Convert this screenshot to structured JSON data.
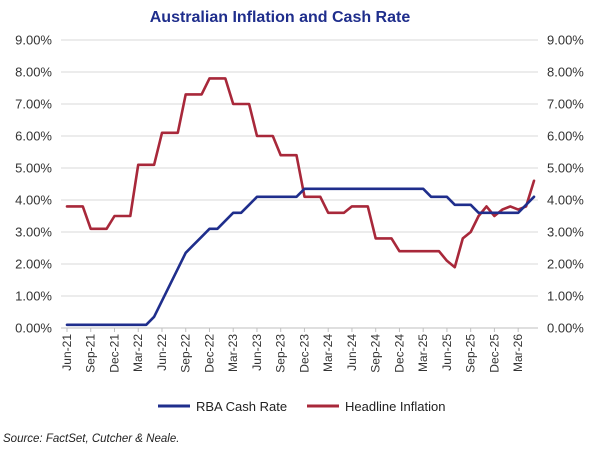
{
  "chart_data": {
    "type": "line",
    "title": "Australian Inflation and Cash Rate",
    "xlabel": "",
    "ylabel": "",
    "ylim": [
      0,
      9
    ],
    "y_ticks": [
      "0.00%",
      "1.00%",
      "2.00%",
      "3.00%",
      "4.00%",
      "5.00%",
      "6.00%",
      "7.00%",
      "8.00%",
      "9.00%"
    ],
    "x_ticks": [
      "Jun-21",
      "Sep-21",
      "Dec-21",
      "Mar-22",
      "Jun-22",
      "Sep-22",
      "Dec-22",
      "Mar-23",
      "Jun-23",
      "Sep-23",
      "Dec-23",
      "Mar-24",
      "Jun-24",
      "Sep-24",
      "Dec-24",
      "Mar-25",
      "Jun-25",
      "Sep-25",
      "Dec-25",
      "Mar-26"
    ],
    "grid": true,
    "legend_position": "bottom",
    "source": "Source: FactSet, Cutcher & Neale.",
    "series": [
      {
        "name": "RBA Cash Rate",
        "color": "#1F2E8C",
        "values": [
          0.1,
          0.1,
          0.1,
          0.1,
          0.1,
          0.1,
          0.1,
          0.1,
          0.1,
          0.1,
          0.1,
          0.35,
          0.85,
          1.35,
          1.85,
          2.35,
          2.6,
          2.85,
          3.1,
          3.1,
          3.35,
          3.6,
          3.6,
          3.85,
          4.1,
          4.1,
          4.1,
          4.1,
          4.1,
          4.1,
          4.35,
          4.35,
          4.35,
          4.35,
          4.35,
          4.35,
          4.35,
          4.35,
          4.35,
          4.35,
          4.35,
          4.35,
          4.35,
          4.35,
          4.35,
          4.35,
          4.1,
          4.1,
          4.1,
          3.85,
          3.85,
          3.85,
          3.6,
          3.6,
          3.6,
          3.6,
          3.6,
          3.6,
          3.85,
          4.1
        ]
      },
      {
        "name": "Headline Inflation",
        "color": "#A8283A",
        "values": [
          3.8,
          3.8,
          3.8,
          3.1,
          3.1,
          3.1,
          3.5,
          3.5,
          3.5,
          5.1,
          5.1,
          5.1,
          6.1,
          6.1,
          6.1,
          7.3,
          7.3,
          7.3,
          7.8,
          7.8,
          7.8,
          7.0,
          7.0,
          7.0,
          6.0,
          6.0,
          6.0,
          5.4,
          5.4,
          5.4,
          4.1,
          4.1,
          4.1,
          3.6,
          3.6,
          3.6,
          3.8,
          3.8,
          3.8,
          2.8,
          2.8,
          2.8,
          2.4,
          2.4,
          2.4,
          2.4,
          2.4,
          2.4,
          2.1,
          1.9,
          2.8,
          3.0,
          3.5,
          3.8,
          3.5,
          3.7,
          3.8,
          3.7,
          3.8,
          4.6
        ]
      }
    ]
  }
}
